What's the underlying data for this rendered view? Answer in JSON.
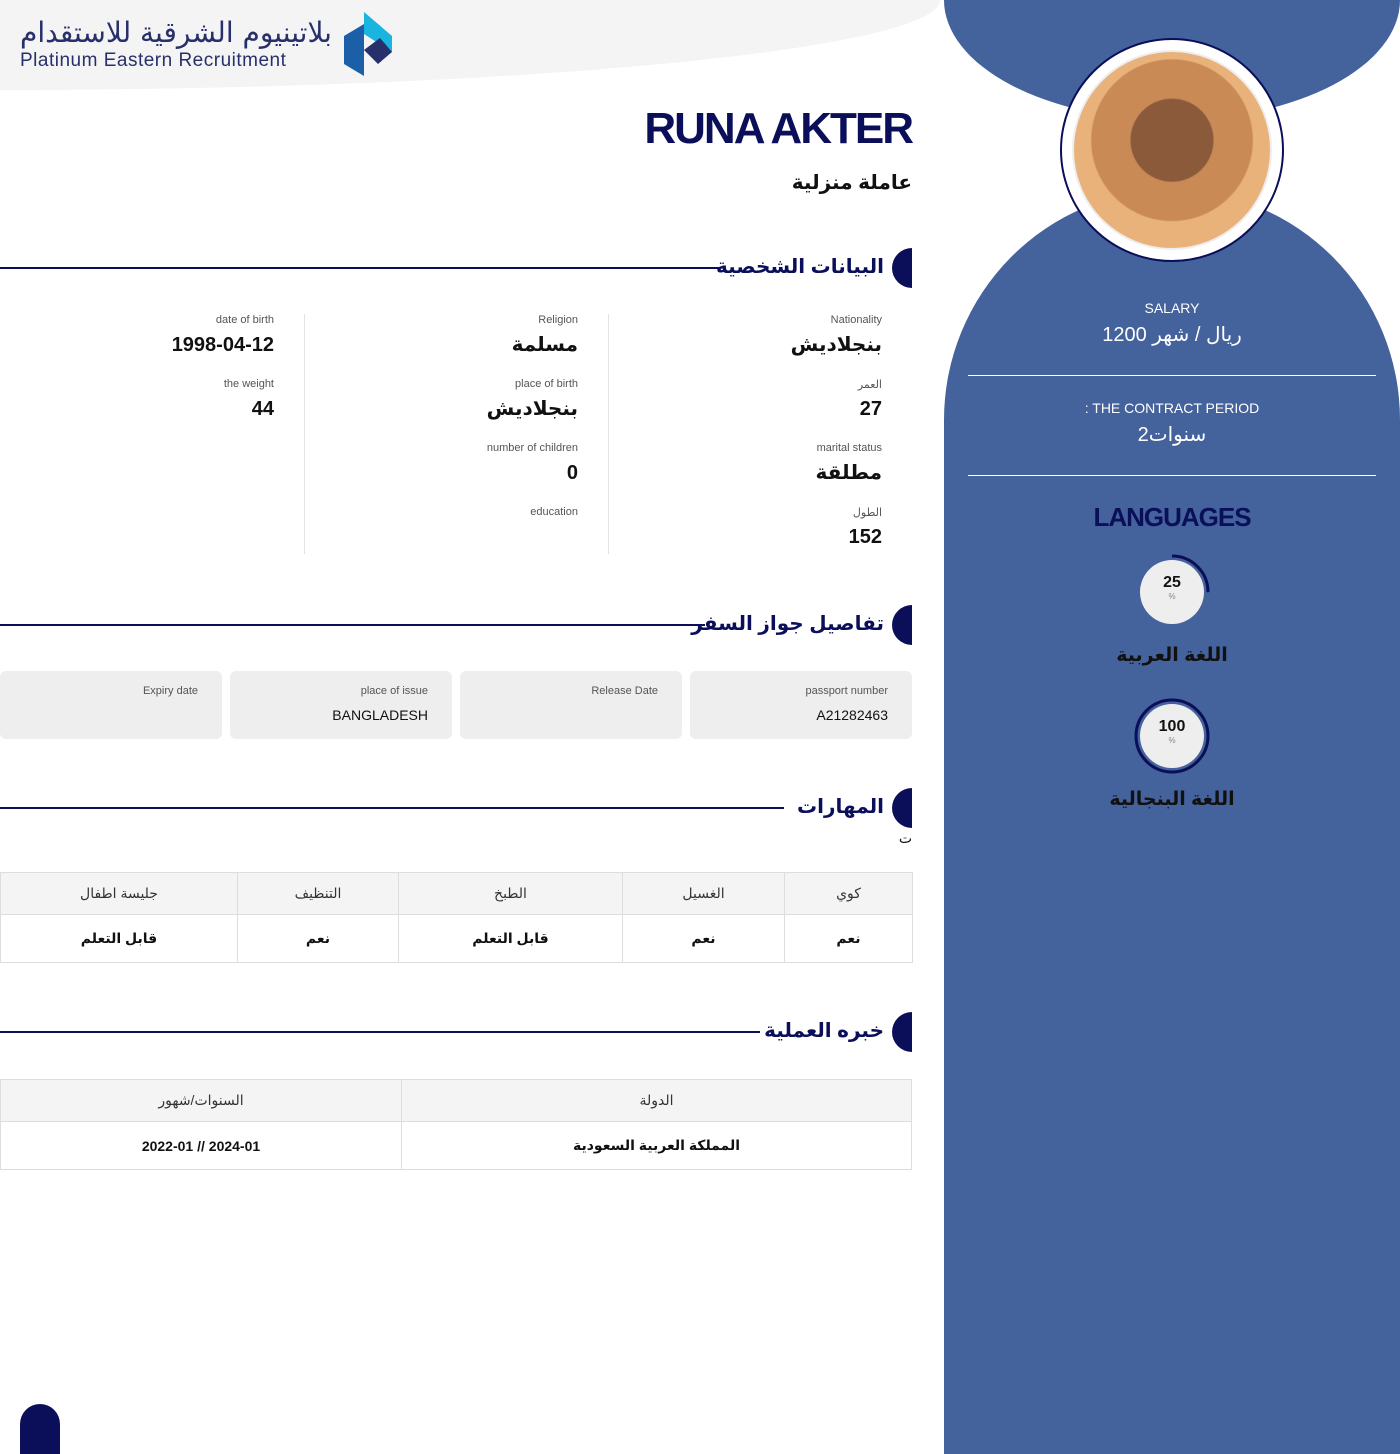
{
  "logo": {
    "arabic": "بلاتينيوم الشرقية للاستقدام",
    "english": "Platinum Eastern Recruitment"
  },
  "candidate": {
    "name": "RUNA AKTER",
    "job": "عاملة منزلية"
  },
  "sections": {
    "personal": "البيانات الشخصية",
    "passport": "تفاصيل جواز السفر",
    "skills": "المهارات",
    "skills_note": "ت",
    "experience": "خبره العملية"
  },
  "personal": {
    "col1": [
      {
        "label": "Nationality",
        "value": "بنجلاديش"
      },
      {
        "label": "العمر",
        "value": "27"
      },
      {
        "label": "marital status",
        "value": "مطلقة"
      },
      {
        "label": "الطول",
        "value": "152"
      }
    ],
    "col2": [
      {
        "label": "Religion",
        "value": "مسلمة"
      },
      {
        "label": "place of birth",
        "value": "بنجلاديش"
      },
      {
        "label": "number of children",
        "value": "0"
      },
      {
        "label": "education",
        "value": ""
      }
    ],
    "col3": [
      {
        "label": "date of birth",
        "value": "1998-04-12"
      },
      {
        "label": "the weight",
        "value": "44"
      }
    ]
  },
  "passport": [
    {
      "label": "passport number",
      "value": "A21282463"
    },
    {
      "label": "Release Date",
      "value": ""
    },
    {
      "label": "place of issue",
      "value": "BANGLADESH"
    },
    {
      "label": "Expiry date",
      "value": ""
    }
  ],
  "skills": {
    "headers": [
      "كوي",
      "الغسيل",
      "الطبخ",
      "التنظيف",
      "جليسة اطفال"
    ],
    "values": [
      "نعم",
      "نعم",
      "قابل التعلم",
      "نعم",
      "قابل التعلم"
    ]
  },
  "experience": {
    "headers": [
      "الدولة",
      "السنوات/شهور"
    ],
    "rows": [
      [
        "المملكة العربية السعودية",
        "2024-01 // 2022-01"
      ]
    ]
  },
  "sidebar": {
    "salary_label": "SALARY",
    "salary_value": "1200 ريال / شهر",
    "contract_label": ": THE CONTRACT PERIOD",
    "contract_value": "2سنوات",
    "languages_title": "LANGUAGES",
    "languages": [
      {
        "name": "اللغة العربية",
        "percent": 25,
        "percent_text": "25",
        "unit": "%"
      },
      {
        "name": "اللغة البنجالية",
        "percent": 100,
        "percent_text": "100",
        "unit": "%"
      }
    ]
  },
  "colors": {
    "navy": "#0b0f5a",
    "sidebar": "#44629c"
  }
}
